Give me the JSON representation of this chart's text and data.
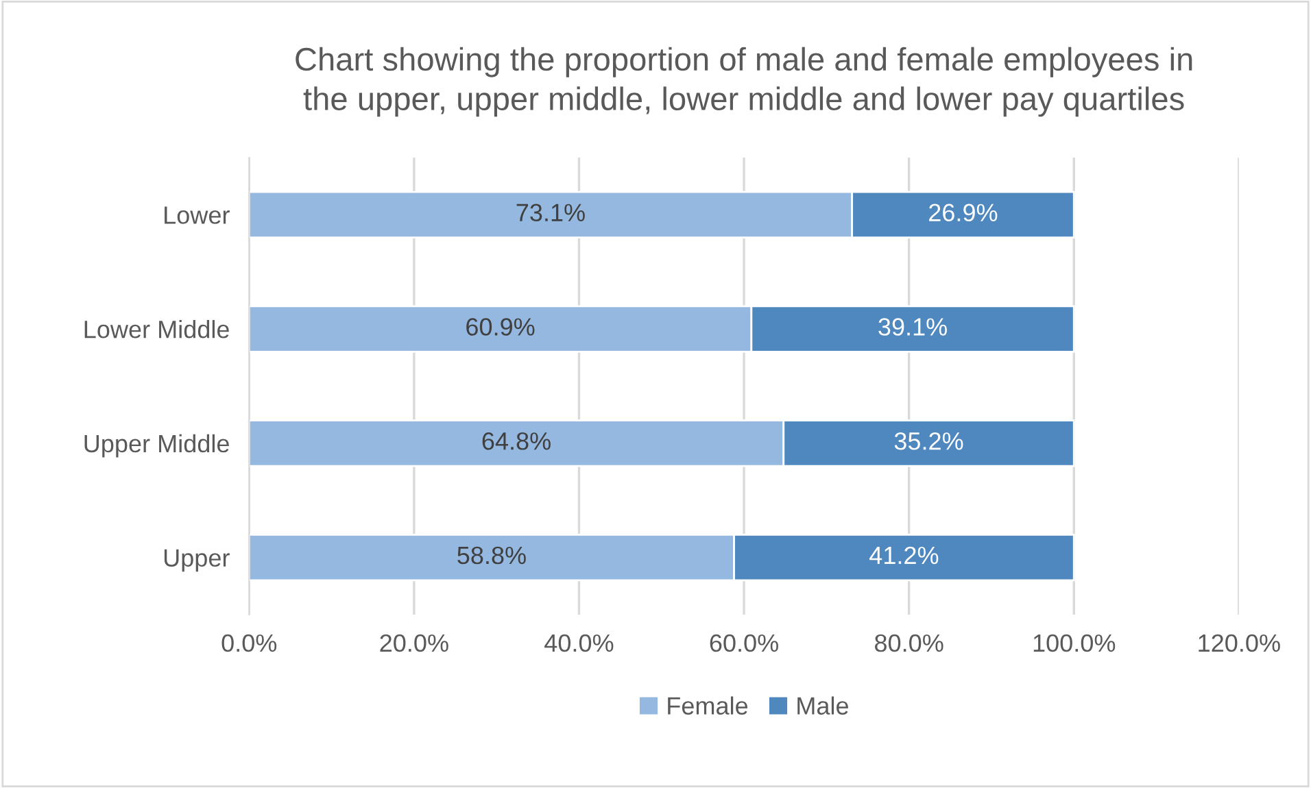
{
  "chart_data": {
    "type": "bar",
    "orientation": "horizontal",
    "stacked": true,
    "title": "Chart showing the proportion of male and female employees in\nthe upper, upper middle, lower middle and lower pay quartiles",
    "categories": [
      "Lower",
      "Lower Middle",
      "Upper Middle",
      "Upper"
    ],
    "series": [
      {
        "name": "Female",
        "color": "#95b8e0",
        "values": [
          73.1,
          60.9,
          64.8,
          58.8
        ],
        "value_labels": [
          "73.1%",
          "60.9%",
          "64.8%",
          "58.8%"
        ]
      },
      {
        "name": "Male",
        "color": "#4f88bf",
        "values": [
          26.9,
          39.1,
          35.2,
          41.2
        ],
        "value_labels": [
          "26.9%",
          "39.1%",
          "35.2%",
          "41.2%"
        ]
      }
    ],
    "xlim": [
      0,
      120
    ],
    "xticks": [
      {
        "value": 0,
        "label": "0.0%"
      },
      {
        "value": 20,
        "label": "20.0%"
      },
      {
        "value": 40,
        "label": "40.0%"
      },
      {
        "value": 60,
        "label": "60.0%"
      },
      {
        "value": 80,
        "label": "80.0%"
      },
      {
        "value": 100,
        "label": "100.0%"
      },
      {
        "value": 120,
        "label": "120.0%"
      }
    ],
    "grid": "x",
    "legend": "bottom"
  }
}
